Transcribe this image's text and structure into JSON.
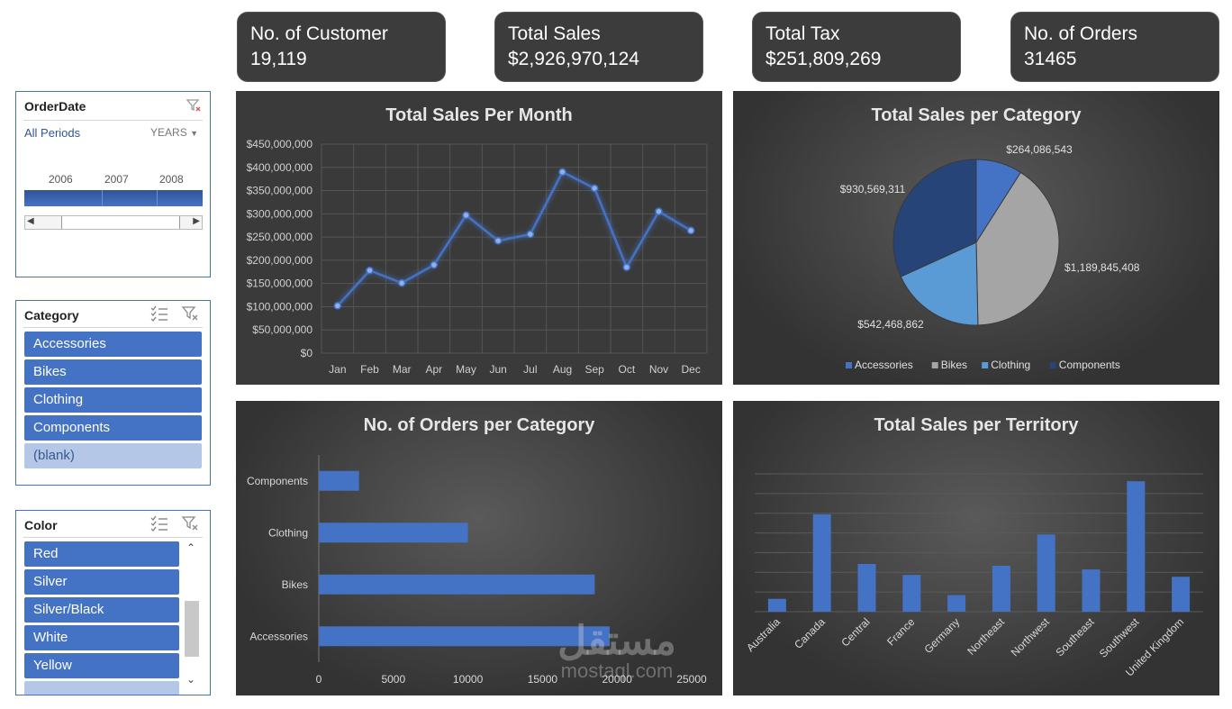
{
  "kpis": [
    {
      "label": "No. of Customer",
      "value": "19,119"
    },
    {
      "label": "Total Sales",
      "value": "$2,926,970,124"
    },
    {
      "label": "Total Tax",
      "value": "$251,809,269"
    },
    {
      "label": "No. of Orders",
      "value": "31465"
    }
  ],
  "timeline": {
    "title": "OrderDate",
    "period": "All Periods",
    "level": "YEARS",
    "years": [
      "2006",
      "2007",
      "2008"
    ]
  },
  "category_slicer": {
    "title": "Category",
    "items": [
      "Accessories",
      "Bikes",
      "Clothing",
      "Components",
      "(blank)"
    ]
  },
  "color_slicer": {
    "title": "Color",
    "items": [
      "Red",
      "Silver",
      "Silver/Black",
      "White",
      "Yellow"
    ]
  },
  "watermark": {
    "arabic": "مستقل",
    "latin": "mostaql.com"
  },
  "chart_data": [
    {
      "type": "line",
      "title": "Total Sales Per Month",
      "categories": [
        "Jan",
        "Feb",
        "Mar",
        "Apr",
        "May",
        "Jun",
        "Jul",
        "Aug",
        "Sep",
        "Oct",
        "Nov",
        "Dec"
      ],
      "values": [
        102000000,
        178000000,
        151000000,
        190000000,
        297000000,
        242000000,
        256000000,
        390000000,
        355000000,
        185000000,
        305000000,
        264000000
      ],
      "ylim": [
        0,
        450000000
      ],
      "yticks": [
        "$0",
        "$50,000,000",
        "$100,000,000",
        "$150,000,000",
        "$200,000,000",
        "$250,000,000",
        "$300,000,000",
        "$350,000,000",
        "$400,000,000",
        "$450,000,000"
      ],
      "grid": true,
      "color": "#4472c4"
    },
    {
      "type": "pie",
      "title": "Total Sales per Category",
      "labels": [
        "Accessories",
        "Bikes",
        "Clothing",
        "Components"
      ],
      "values": [
        264086543,
        1189845408,
        542468862,
        930569311
      ],
      "data_labels": [
        "$264,086,543",
        "$1,189,845,408",
        "$542,468,862",
        "$930,569,311"
      ],
      "colors": [
        "#4472c4",
        "#a5a5a5",
        "#5b9bd5",
        "#264478"
      ],
      "legend": "bottom"
    },
    {
      "type": "bar",
      "orientation": "horizontal",
      "title": "No. of Orders per Category",
      "categories": [
        "Accessories",
        "Bikes",
        "Clothing",
        "Components"
      ],
      "values": [
        19500,
        18500,
        10000,
        2700
      ],
      "xlim": [
        0,
        25000
      ],
      "xticks": [
        "0",
        "5000",
        "10000",
        "15000",
        "20000",
        "25000"
      ],
      "color": "#4472c4"
    },
    {
      "type": "bar",
      "title": "Total Sales per Territory",
      "categories": [
        "Australia",
        "Canada",
        "Central",
        "France",
        "Germany",
        "Northeast",
        "Northwest",
        "Southeast",
        "Southwest",
        "United Kingdom"
      ],
      "values": [
        0.7,
        5.3,
        2.6,
        2.0,
        0.9,
        2.5,
        4.2,
        2.3,
        7.1,
        1.9
      ],
      "ylim": [
        0,
        7.5
      ],
      "grid": true,
      "color": "#4472c4"
    }
  ]
}
